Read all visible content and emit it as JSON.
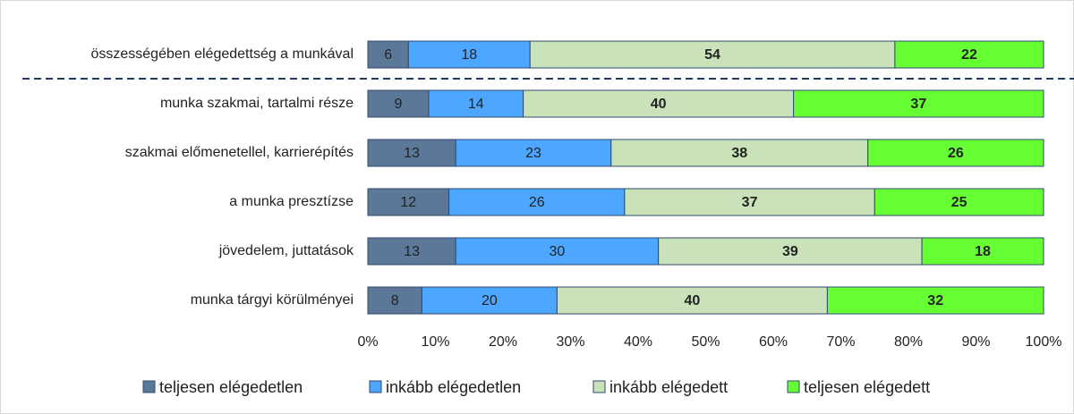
{
  "chart_data": {
    "type": "stacked_bar_horizontal",
    "categories": [
      "összességében elégedettség a munkával",
      "munka szakmai, tartalmi része",
      "szakmai előmenetellel, karrierépítés",
      "a munka presztízse",
      "jövedelem, juttatások",
      "munka tárgyi körülményei"
    ],
    "series": [
      {
        "name": "teljesen elégedetlen",
        "color": "#5b7899",
        "values": [
          6,
          9,
          13,
          12,
          13,
          8
        ]
      },
      {
        "name": "inkább elégedetlen",
        "color": "#4da6ff",
        "values": [
          18,
          14,
          23,
          26,
          30,
          20
        ]
      },
      {
        "name": "inkább elégedett",
        "color": "#c9e2b9",
        "values": [
          54,
          40,
          38,
          37,
          39,
          40
        ]
      },
      {
        "name": "teljesen elégedett",
        "color": "#66ff33",
        "values": [
          22,
          37,
          26,
          25,
          18,
          32
        ]
      }
    ],
    "xlim": [
      0,
      100
    ],
    "xticks": [
      {
        "value": 0,
        "label": "0%"
      },
      {
        "value": 10,
        "label": "10%"
      },
      {
        "value": 20,
        "label": "20%"
      },
      {
        "value": 30,
        "label": "30%"
      },
      {
        "value": 40,
        "label": "40%"
      },
      {
        "value": 50,
        "label": "50%"
      },
      {
        "value": 60,
        "label": "60%"
      },
      {
        "value": 70,
        "label": "70%"
      },
      {
        "value": 80,
        "label": "80%"
      },
      {
        "value": 90,
        "label": "90%"
      },
      {
        "value": 100,
        "label": "100%"
      }
    ],
    "legend": "bottom"
  }
}
